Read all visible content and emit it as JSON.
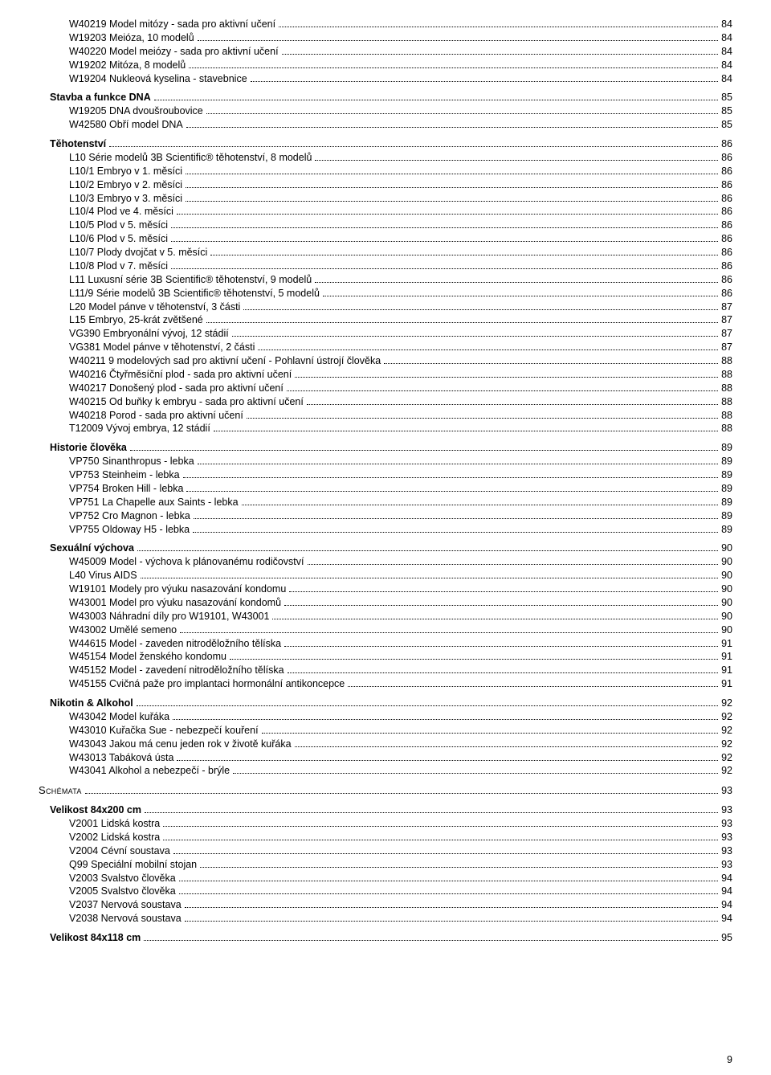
{
  "page_number": "9",
  "entries": [
    {
      "level": 2,
      "text": "W40219 Model mitózy - sada pro aktivní učení",
      "page": "84"
    },
    {
      "level": 2,
      "text": "W19203 Meióza, 10 modelů",
      "page": "84"
    },
    {
      "level": 2,
      "text": "W40220 Model meiózy - sada pro aktivní učení",
      "page": "84"
    },
    {
      "level": 2,
      "text": "W19202 Mitóza, 8 modelů",
      "page": "84"
    },
    {
      "level": 2,
      "text": "W19204 Nukleová kyselina - stavebnice",
      "page": "84"
    },
    {
      "gap": true
    },
    {
      "level": 1,
      "text": "Stavba a funkce DNA",
      "page": "85"
    },
    {
      "level": 2,
      "text": "W19205 DNA dvoušroubovice",
      "page": "85"
    },
    {
      "level": 2,
      "text": "W42580 Obří model DNA",
      "page": "85"
    },
    {
      "gap": true
    },
    {
      "level": 1,
      "text": "Těhotenství",
      "page": "86"
    },
    {
      "level": 2,
      "text": "L10 Série modelů 3B Scientific® těhotenství, 8 modelů",
      "page": "86"
    },
    {
      "level": 2,
      "text": "L10/1 Embryo v 1. měsíci",
      "page": "86"
    },
    {
      "level": 2,
      "text": "L10/2 Embryo v 2. měsíci",
      "page": "86"
    },
    {
      "level": 2,
      "text": "L10/3 Embryo v 3. měsíci",
      "page": "86"
    },
    {
      "level": 2,
      "text": "L10/4 Plod ve 4. měsíci",
      "page": "86"
    },
    {
      "level": 2,
      "text": "L10/5 Plod v 5. měsíci",
      "page": "86"
    },
    {
      "level": 2,
      "text": "L10/6 Plod v 5. měsíci",
      "page": "86"
    },
    {
      "level": 2,
      "text": "L10/7 Plody dvojčat v 5. měsíci",
      "page": "86"
    },
    {
      "level": 2,
      "text": "L10/8 Plod v 7. měsíci",
      "page": "86"
    },
    {
      "level": 2,
      "text": "L11 Luxusní série 3B Scientific® těhotenství, 9 modelů",
      "page": "86"
    },
    {
      "level": 2,
      "text": "L11/9 Série modelů 3B Scientific® těhotenství, 5 modelů",
      "page": "86"
    },
    {
      "level": 2,
      "text": "L20 Model pánve v těhotenství, 3 části",
      "page": "87"
    },
    {
      "level": 2,
      "text": "L15 Embryo, 25-krát zvětšené",
      "page": "87"
    },
    {
      "level": 2,
      "text": "VG390 Embryonální vývoj, 12 stádií",
      "page": "87"
    },
    {
      "level": 2,
      "text": "VG381 Model pánve v těhotenství, 2 části",
      "page": "87"
    },
    {
      "level": 2,
      "text": "W40211 9 modelových sad pro aktivní učení - Pohlavní ústrojí člověka",
      "page": "88"
    },
    {
      "level": 2,
      "text": "W40216 Čtyřměsíční plod - sada pro aktivní učení",
      "page": "88"
    },
    {
      "level": 2,
      "text": "W40217 Donošený plod - sada pro aktivní učení",
      "page": "88"
    },
    {
      "level": 2,
      "text": "W40215 Od buňky k embryu - sada pro aktivní učení",
      "page": "88"
    },
    {
      "level": 2,
      "text": "W40218 Porod - sada pro aktivní učení",
      "page": "88"
    },
    {
      "level": 2,
      "text": "T12009 Vývoj embrya, 12 stádií",
      "page": "88"
    },
    {
      "gap": true
    },
    {
      "level": 1,
      "text": "Historie člověka",
      "page": "89"
    },
    {
      "level": 2,
      "text": "VP750 Sinanthropus - lebka",
      "page": "89"
    },
    {
      "level": 2,
      "text": "VP753 Steinheim - lebka",
      "page": "89"
    },
    {
      "level": 2,
      "text": "VP754 Broken Hill - lebka",
      "page": "89"
    },
    {
      "level": 2,
      "text": "VP751 La Chapelle aux Saints - lebka",
      "page": "89"
    },
    {
      "level": 2,
      "text": "VP752 Cro Magnon - lebka",
      "page": "89"
    },
    {
      "level": 2,
      "text": "VP755 Oldoway H5 - lebka",
      "page": "89"
    },
    {
      "gap": true
    },
    {
      "level": 1,
      "text": "Sexuální výchova",
      "page": "90"
    },
    {
      "level": 2,
      "text": "W45009 Model - výchova k plánovanému rodičovství",
      "page": "90"
    },
    {
      "level": 2,
      "text": "L40 Virus AIDS",
      "page": "90"
    },
    {
      "level": 2,
      "text": "W19101 Modely pro výuku nasazování kondomu",
      "page": "90"
    },
    {
      "level": 2,
      "text": "W43001 Model pro výuku nasazování kondomů",
      "page": "90"
    },
    {
      "level": 2,
      "text": "W43003 Náhradní díly pro W19101, W43001",
      "page": "90"
    },
    {
      "level": 2,
      "text": "W43002 Umělé semeno",
      "page": "90"
    },
    {
      "level": 2,
      "text": "W44615 Model - zaveden nitroděložního tělíska",
      "page": "91"
    },
    {
      "level": 2,
      "text": "W45154 Model ženského kondomu",
      "page": "91"
    },
    {
      "level": 2,
      "text": "W45152 Model - zavedení nitroděložního tělíska",
      "page": "91"
    },
    {
      "level": 2,
      "text": "W45155 Cvičná paže pro implantaci hormonální antikoncepce",
      "page": "91"
    },
    {
      "gap": true
    },
    {
      "level": 1,
      "text": "Nikotin & Alkohol",
      "page": "92"
    },
    {
      "level": 2,
      "text": "W43042 Model kuřáka",
      "page": "92"
    },
    {
      "level": 2,
      "text": "W43010 Kuřačka Sue - nebezpečí kouření",
      "page": "92"
    },
    {
      "level": 2,
      "text": "W43043 Jakou má cenu jeden rok v životě kuřáka",
      "page": "92"
    },
    {
      "level": 2,
      "text": "W43013 Tabáková ústa",
      "page": "92"
    },
    {
      "level": 2,
      "text": "W43041 Alkohol a nebezpečí - brýle",
      "page": "92"
    },
    {
      "gap": true
    },
    {
      "level": 0,
      "text": "Schémata",
      "page": "93"
    },
    {
      "gap": true
    },
    {
      "level": 1,
      "text": "Velikost 84x200 cm",
      "page": "93"
    },
    {
      "level": 2,
      "text": "V2001 Lidská kostra",
      "page": "93"
    },
    {
      "level": 2,
      "text": "V2002 Lidská kostra",
      "page": "93"
    },
    {
      "level": 2,
      "text": "V2004 Cévní soustava",
      "page": "93"
    },
    {
      "level": 2,
      "text": "Q99 Speciální mobilní stojan",
      "page": "93"
    },
    {
      "level": 2,
      "text": "V2003 Svalstvo člověka",
      "page": "94"
    },
    {
      "level": 2,
      "text": "V2005 Svalstvo člověka",
      "page": "94"
    },
    {
      "level": 2,
      "text": "V2037 Nervová soustava",
      "page": "94"
    },
    {
      "level": 2,
      "text": "V2038 Nervová soustava",
      "page": "94"
    },
    {
      "gap": true
    },
    {
      "level": 1,
      "text": "Velikost 84x118 cm",
      "page": "95"
    }
  ]
}
